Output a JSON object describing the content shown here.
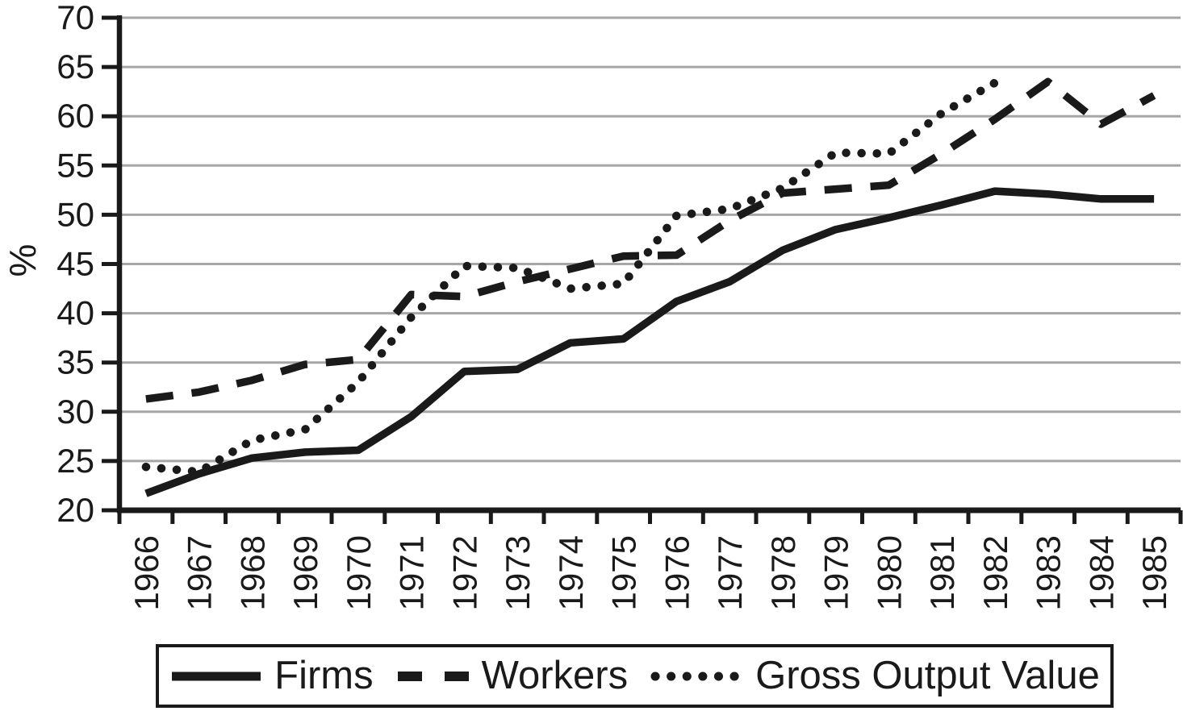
{
  "chart_data": {
    "type": "line",
    "title": "",
    "ylabel": "%",
    "xlabel": "",
    "x": [
      "1966",
      "1967",
      "1968",
      "1969",
      "1970",
      "1971",
      "1972",
      "1973",
      "1974",
      "1975",
      "1976",
      "1977",
      "1978",
      "1979",
      "1980",
      "1981",
      "1982",
      "1983",
      "1984",
      "1985"
    ],
    "y_ticks": [
      20,
      25,
      30,
      35,
      40,
      45,
      50,
      55,
      60,
      65,
      70
    ],
    "ylim": [
      20,
      70
    ],
    "grid": true,
    "legend_position": "bottom",
    "line_color": "#1a1a1a",
    "grid_color": "#a6a6a6",
    "text_color": "#1a1a1a",
    "series": [
      {
        "name": "Firms",
        "line_style": "solid",
        "values": [
          21.7,
          23.7,
          25.3,
          25.9,
          26.1,
          29.5,
          34.1,
          34.3,
          37.0,
          37.4,
          41.2,
          43.2,
          46.4,
          48.5,
          49.7,
          51.0,
          52.4,
          52.1,
          51.6,
          51.6
        ]
      },
      {
        "name": "Workers",
        "line_style": "dashed",
        "values": [
          31.3,
          32.0,
          33.2,
          34.8,
          35.3,
          41.9,
          41.7,
          43.2,
          44.5,
          45.8,
          45.9,
          49.4,
          52.2,
          52.6,
          53.0,
          56.2,
          59.7,
          63.5,
          59.2,
          62.1
        ]
      },
      {
        "name": "Gross Output Value",
        "line_style": "dotted",
        "values": [
          24.4,
          23.9,
          27.1,
          28.2,
          33.0,
          39.6,
          44.8,
          44.6,
          42.5,
          43.0,
          49.9,
          50.6,
          52.7,
          56.3,
          56.2,
          60.3,
          63.4,
          null,
          null,
          null
        ]
      }
    ]
  }
}
